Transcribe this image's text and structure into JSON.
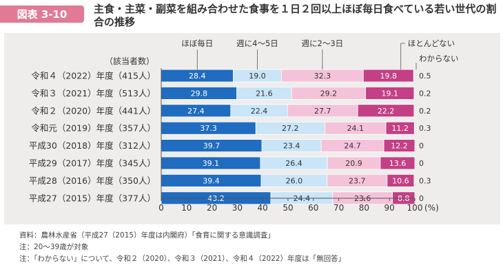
{
  "figure_label": "図表 3-10",
  "title": "主食・主菜・副菜を組み合わせた食事を１日２回以上ほぼ毎日食べている若い世代の割合の推移",
  "colors": {
    "badge": "#e07a95",
    "panel": "#eeedec",
    "series": [
      "#1f6cc0",
      "#c9e5f7",
      "#f5c3d9",
      "#c33f86",
      "#ffffff"
    ],
    "series_text": [
      "#ffffff",
      "#333333",
      "#333333",
      "#ffffff",
      "#333333"
    ]
  },
  "chart_data": {
    "type": "bar",
    "orientation": "horizontal",
    "stacked": true,
    "respondents_header": "（該当者数）",
    "categories": [
      "令和４（2022）年度（415人）",
      "令和３（2021）年度（513人）",
      "令和２（2020）年度（441人）",
      "令和元（2019）年度（357人）",
      "平成30（2018）年度（312人）",
      "平成29（2017）年度（345人）",
      "平成28（2016）年度（350人）",
      "平成27（2015）年度（377人）"
    ],
    "series": [
      {
        "name": "ほぼ毎日",
        "values": [
          28.4,
          29.8,
          27.4,
          37.3,
          39.7,
          39.1,
          39.4,
          43.2
        ]
      },
      {
        "name": "週に4～5日",
        "values": [
          19.0,
          21.6,
          22.4,
          27.2,
          23.4,
          26.4,
          26.0,
          24.4
        ]
      },
      {
        "name": "週に2～3日",
        "values": [
          32.3,
          29.2,
          27.7,
          24.1,
          24.7,
          20.9,
          23.7,
          23.6
        ]
      },
      {
        "name": "ほとんどない",
        "values": [
          19.8,
          19.1,
          22.2,
          11.2,
          12.2,
          13.6,
          10.6,
          8.8
        ]
      },
      {
        "name": "わからない",
        "values": [
          0.5,
          0.2,
          0.2,
          0.3,
          0,
          0,
          0.3,
          0
        ]
      }
    ],
    "value_labels": [
      [
        "28.4",
        "19.0",
        "32.3",
        "19.8",
        "0.5"
      ],
      [
        "29.8",
        "21.6",
        "29.2",
        "19.1",
        "0.2"
      ],
      [
        "27.4",
        "22.4",
        "27.7",
        "22.2",
        "0.2"
      ],
      [
        "37.3",
        "27.2",
        "24.1",
        "11.2",
        "0.3"
      ],
      [
        "39.7",
        "23.4",
        "24.7",
        "12.2",
        "0"
      ],
      [
        "39.1",
        "26.4",
        "20.9",
        "13.6",
        "0"
      ],
      [
        "39.4",
        "26.0",
        "23.7",
        "10.6",
        "0.3"
      ],
      [
        "43.2",
        "24.4",
        "23.6",
        "8.8",
        "0"
      ]
    ],
    "x_ticks": [
      "0",
      "10",
      "20",
      "30",
      "40",
      "50",
      "60",
      "70",
      "80",
      "90",
      "100"
    ],
    "x_unit": "(%)",
    "xlim": [
      0,
      100
    ]
  },
  "notes": [
    "資料：農林水産省（平成27（2015）年度は内閣府）「食育に関する意識調査」",
    "注：20～39歳が対象",
    "注：「わからない」について、令和２（2020）、令和３（2021）、令和４（2022）年度は「無回答」"
  ]
}
